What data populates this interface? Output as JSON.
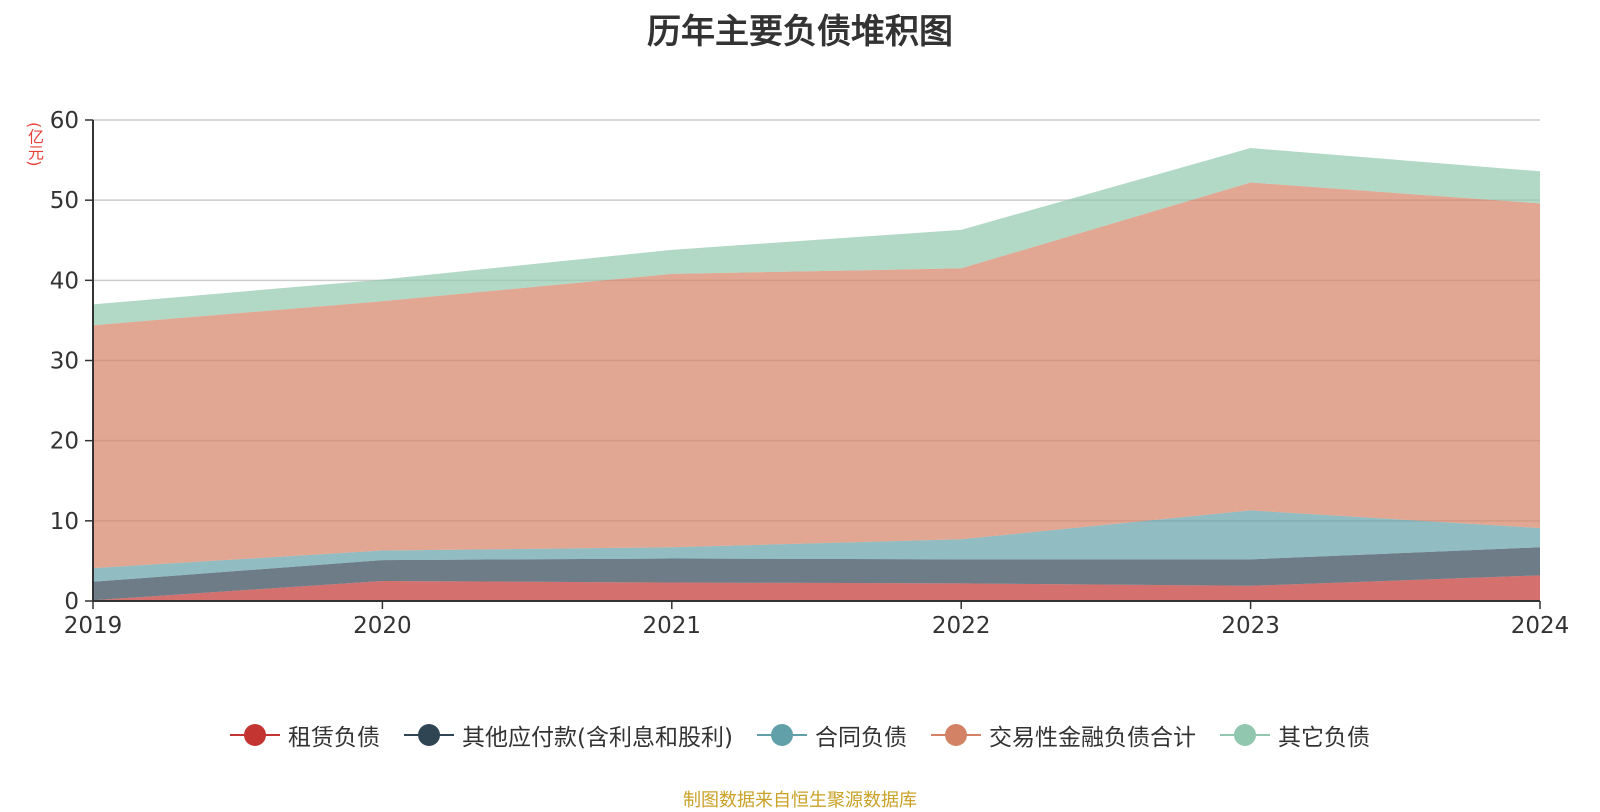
{
  "chart_data": {
    "type": "area",
    "stacked": true,
    "title": "历年主要负债堆积图",
    "unit_label": "(亿元)",
    "categories": [
      "2019",
      "2020",
      "2021",
      "2022",
      "2023",
      "2024"
    ],
    "ylim": [
      0,
      60
    ],
    "yticks": [
      0,
      10,
      20,
      30,
      40,
      50,
      60
    ],
    "grid": true,
    "legend_position": "bottom",
    "series": [
      {
        "name": "租赁负债",
        "color": "#c23531",
        "values": [
          0.1,
          2.5,
          2.3,
          2.2,
          1.9,
          3.2
        ]
      },
      {
        "name": "其他应付款(含利息和股利)",
        "color": "#2f4554",
        "values": [
          2.3,
          2.6,
          3.0,
          3.0,
          3.3,
          3.5
        ]
      },
      {
        "name": "合同负债",
        "color": "#61a0a8",
        "values": [
          1.7,
          1.2,
          1.4,
          2.5,
          6.1,
          2.4
        ]
      },
      {
        "name": "交易性金融负债合计",
        "color": "#d48265",
        "values": [
          30.3,
          31.1,
          34.1,
          33.8,
          40.9,
          40.5
        ]
      },
      {
        "name": "其它负债",
        "color": "#91c7ae",
        "values": [
          2.6,
          2.7,
          3.0,
          4.8,
          4.3,
          4.0
        ]
      }
    ],
    "source": "制图数据来自恒生聚源数据库"
  }
}
